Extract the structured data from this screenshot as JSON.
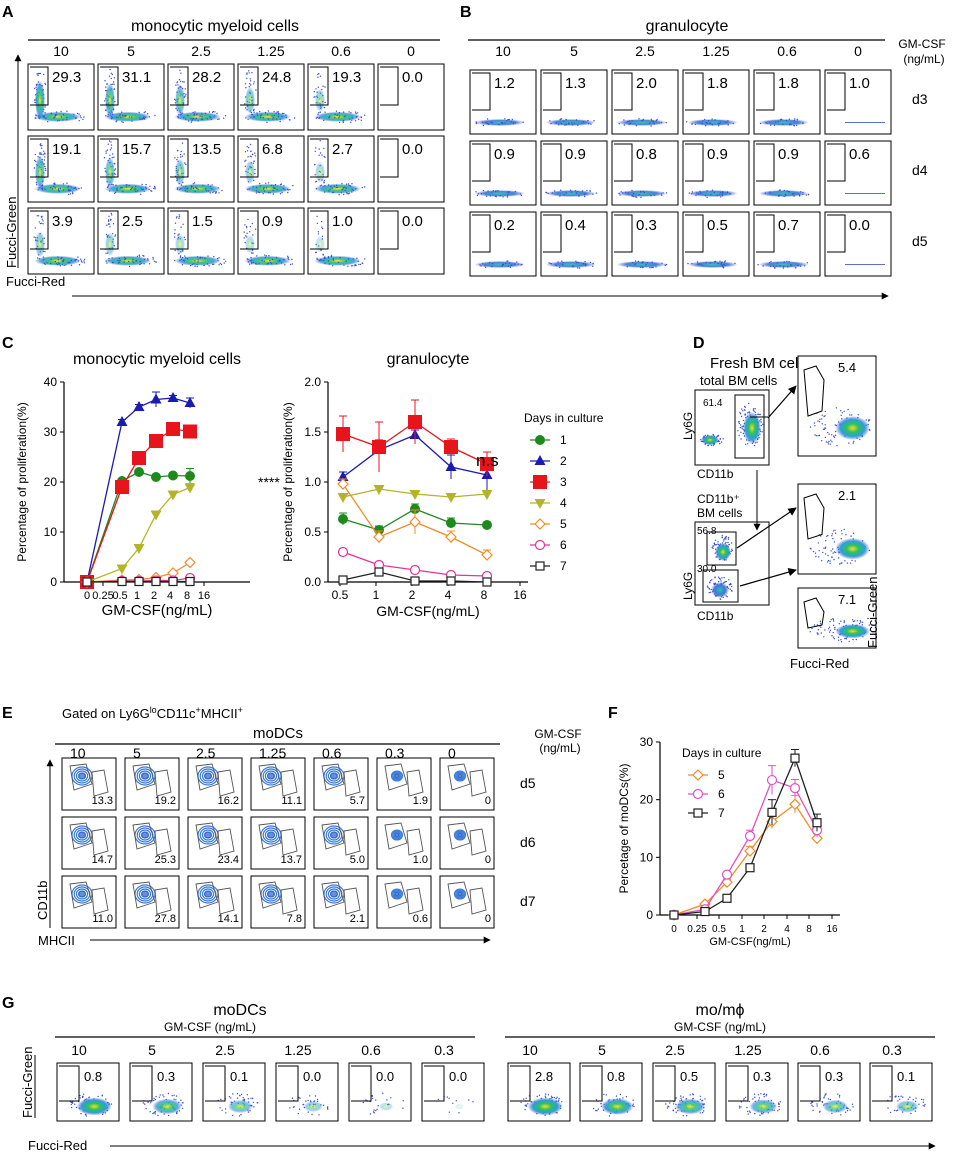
{
  "panels": {
    "A": {
      "letter": "A",
      "title": "monocytic myeloid cells",
      "concentrations": [
        "10",
        "5",
        "2.5",
        "1.25",
        "0.6",
        "0"
      ],
      "rows": [
        [
          "29.3",
          "31.1",
          "28.2",
          "24.8",
          "19.3",
          "0.0"
        ],
        [
          "19.1",
          "15.7",
          "13.5",
          "6.8",
          "2.7",
          "0.0"
        ],
        [
          "3.9",
          "2.5",
          "1.5",
          "0.9",
          "1.0",
          "0.0"
        ]
      ],
      "y_axis_label": "Fucci-Green",
      "x_axis_label": "Fucci-Red"
    },
    "B": {
      "letter": "B",
      "title": "granulocyte",
      "concentrations": [
        "10",
        "5",
        "2.5",
        "1.25",
        "0.6",
        "0"
      ],
      "rows": [
        [
          "1.2",
          "1.3",
          "2.0",
          "1.8",
          "1.8",
          "1.0"
        ],
        [
          "0.9",
          "0.9",
          "0.8",
          "0.9",
          "0.9",
          "0.6"
        ],
        [
          "0.2",
          "0.4",
          "0.3",
          "0.5",
          "0.7",
          "0.0"
        ]
      ],
      "unit_label_line1": "GM-CSF",
      "unit_label_line2": "(ng/mL)",
      "day_labels": [
        "d3",
        "d4",
        "d5"
      ]
    },
    "C": {
      "letter": "C"
    },
    "D": {
      "letter": "D",
      "title": "Fresh BM cells",
      "top_label": "total BM cells",
      "top_gate_value": "61.4",
      "mid_label_line1": "CD11b⁺",
      "mid_label_line2": "BM cells",
      "mid_gate_upper": "56.8",
      "mid_gate_lower": "30.0",
      "ly6g_label": "Ly6G",
      "cd11b_label": "CD11b",
      "right_values": [
        "5.4",
        "2.1",
        "7.1"
      ],
      "right_y_label": "Fucci-Green",
      "right_x_label": "Fucci-Red"
    },
    "E": {
      "letter": "E",
      "gated_prefix": "Gated on Ly6G",
      "gated_sup1": "lo",
      "gated_mid": "CD11c",
      "gated_sup2": "+",
      "gated_mid2": "MHCII",
      "gated_sup3": "+",
      "title": "moDCs",
      "concentrations": [
        "10",
        "5",
        "2.5",
        "1.25",
        "0.6",
        "0.3",
        "0"
      ],
      "rows": [
        [
          "13.3",
          "19.2",
          "16.2",
          "11.1",
          "5.7",
          "1.9",
          "0"
        ],
        [
          "14.7",
          "25.3",
          "23.4",
          "13.7",
          "5.0",
          "1.0",
          "0"
        ],
        [
          "11.0",
          "27.8",
          "14.1",
          "7.8",
          "2.1",
          "0.6",
          "0"
        ]
      ],
      "unit_label_line1": "GM-CSF",
      "unit_label_line2": "(ng/mL)",
      "day_labels": [
        "d5",
        "d6",
        "d7"
      ],
      "y_axis_label": "CD11b",
      "x_axis_label": "MHCII"
    },
    "F": {
      "letter": "F"
    },
    "G": {
      "letter": "G",
      "left_title": "moDCs",
      "right_title": "mo/mϕ",
      "sub_label": "GM-CSF (ng/mL)",
      "concentrations": [
        "10",
        "5",
        "2.5",
        "1.25",
        "0.6",
        "0.3"
      ],
      "left_values": [
        "0.8",
        "0.3",
        "0.1",
        "0.0",
        "0.0",
        "0.0"
      ],
      "right_values": [
        "2.8",
        "0.8",
        "0.5",
        "0.3",
        "0.3",
        "0.1"
      ],
      "y_axis_label": "Fucci-Green",
      "x_axis_label": "Fucci-Red"
    }
  },
  "chart_data": [
    {
      "id": "C-left",
      "type": "line",
      "title": "monocytic myeloid cells",
      "xlabel": "GM-CSF(ng/mL)",
      "ylabel": "Percentage of proliferation(%)",
      "x": [
        0,
        0.6,
        1.25,
        2.5,
        5,
        10
      ],
      "xticks": [
        "0",
        "0.25",
        "0.5",
        "1",
        "2",
        "4",
        "8",
        "16"
      ],
      "ylim": [
        0,
        40
      ],
      "yticks": [
        0,
        10,
        20,
        30,
        40
      ],
      "annotation": "****",
      "series": [
        {
          "name": "1",
          "values": [
            0,
            20.2,
            22,
            21,
            21.3,
            21.2
          ],
          "err": [
            0,
            0.5,
            0.5,
            0.5,
            0.5,
            1.5
          ]
        },
        {
          "name": "2",
          "values": [
            0,
            32,
            35,
            36.5,
            36.8,
            35.8
          ],
          "err": [
            0,
            0.5,
            0.5,
            1.5,
            0.5,
            1
          ]
        },
        {
          "name": "3",
          "values": [
            0,
            19,
            24.8,
            28.2,
            30.6,
            30.1
          ],
          "err": [
            0,
            0.5,
            0.5,
            0.5,
            0.5,
            0.5
          ]
        },
        {
          "name": "4",
          "values": [
            0,
            2.7,
            6.8,
            13.5,
            17.5,
            18.9
          ],
          "err": [
            0,
            0.3,
            0.3,
            0.5,
            0.5,
            0.8
          ]
        },
        {
          "name": "5",
          "values": [
            0,
            0.4,
            0.5,
            0.9,
            1.8,
            3.9
          ],
          "err": [
            0,
            0.1,
            0.1,
            0.2,
            0.2,
            0.3
          ]
        },
        {
          "name": "6",
          "values": [
            0,
            0.2,
            0.2,
            0.3,
            0.3,
            0.8
          ],
          "err": [
            0,
            0.1,
            0.1,
            0.1,
            0.1,
            0.2
          ]
        },
        {
          "name": "7",
          "values": [
            0,
            0.1,
            0.1,
            0.1,
            0.1,
            0.1
          ],
          "err": [
            0,
            0,
            0,
            0,
            0,
            0
          ]
        }
      ]
    },
    {
      "id": "C-right",
      "type": "line",
      "title": "granulocyte",
      "xlabel": "GM-CSF(ng/mL)",
      "ylabel": "Percentage of proliferation(%)",
      "x": [
        0.6,
        1.25,
        2.5,
        5,
        10
      ],
      "xticks": [
        "0.5",
        "1",
        "2",
        "4",
        "8",
        "16"
      ],
      "ylim": [
        0,
        2.0
      ],
      "yticks": [
        "0.0",
        "0.5",
        "1.0",
        "1.5",
        "2.0"
      ],
      "annotation": "n.s",
      "legend_title": "Days in culture",
      "series": [
        {
          "name": "1",
          "values": [
            0.63,
            0.52,
            0.73,
            0.59,
            0.57
          ],
          "err": [
            0.06,
            0.04,
            0.05,
            0.05,
            0.03
          ]
        },
        {
          "name": "2",
          "values": [
            1.05,
            1.32,
            1.47,
            1.15,
            1.07
          ],
          "err": [
            0.05,
            0.1,
            0.05,
            0.12,
            0.15
          ]
        },
        {
          "name": "3",
          "values": [
            1.48,
            1.35,
            1.6,
            1.35,
            1.18
          ],
          "err": [
            0.18,
            0.25,
            0.22,
            0.08,
            0.12
          ]
        },
        {
          "name": "4",
          "values": [
            0.85,
            0.93,
            0.88,
            0.85,
            0.88
          ],
          "err": [
            0.03,
            0.03,
            0.03,
            0.03,
            0.03
          ]
        },
        {
          "name": "5",
          "values": [
            0.98,
            0.45,
            0.6,
            0.45,
            0.27
          ],
          "err": [
            0.05,
            0.06,
            0.12,
            0.06,
            0.05
          ]
        },
        {
          "name": "6",
          "values": [
            0.3,
            0.17,
            0.12,
            0.07,
            0.06
          ],
          "err": [
            0.02,
            0.02,
            0.02,
            0.01,
            0.01
          ]
        },
        {
          "name": "7",
          "values": [
            0.02,
            0.1,
            0.01,
            0.01,
            0.0
          ],
          "err": [
            0,
            0.03,
            0,
            0,
            0
          ]
        }
      ]
    },
    {
      "id": "F",
      "type": "line",
      "xlabel": "GM-CSF(ng/mL)",
      "ylabel": "Percetage of moDCs(%)",
      "x": [
        0,
        0.3,
        0.6,
        1.25,
        2.5,
        5,
        10
      ],
      "xticks": [
        "0",
        "0.25",
        "0.5",
        "1",
        "2",
        "4",
        "8",
        "16"
      ],
      "ylim": [
        0,
        30
      ],
      "yticks": [
        0,
        10,
        20,
        30
      ],
      "legend_title": "Days in culture",
      "series": [
        {
          "name": "5",
          "values": [
            0,
            1.9,
            5.7,
            11.1,
            16.2,
            19.2,
            13.3
          ],
          "err": [
            0,
            0.3,
            0.5,
            0.8,
            1.2,
            1.5,
            1
          ]
        },
        {
          "name": "6",
          "values": [
            0,
            1.0,
            7.0,
            13.7,
            23.4,
            22,
            14.7
          ],
          "err": [
            0,
            0.3,
            0.5,
            1,
            2.5,
            1.5,
            1.2
          ]
        },
        {
          "name": "7",
          "values": [
            0,
            0.6,
            2.9,
            8.2,
            17.8,
            27.2,
            16
          ],
          "err": [
            0,
            0.2,
            0.3,
            0.5,
            2.2,
            1.5,
            1.5
          ]
        }
      ]
    }
  ],
  "colors": {
    "series_C": [
      "#1e8a1e",
      "#1a1ab4",
      "#e8141c",
      "#b4b428",
      "#f08c28",
      "#e6329b",
      "#202020"
    ],
    "series_F": [
      "#f08c28",
      "#e050c8",
      "#202020"
    ]
  }
}
